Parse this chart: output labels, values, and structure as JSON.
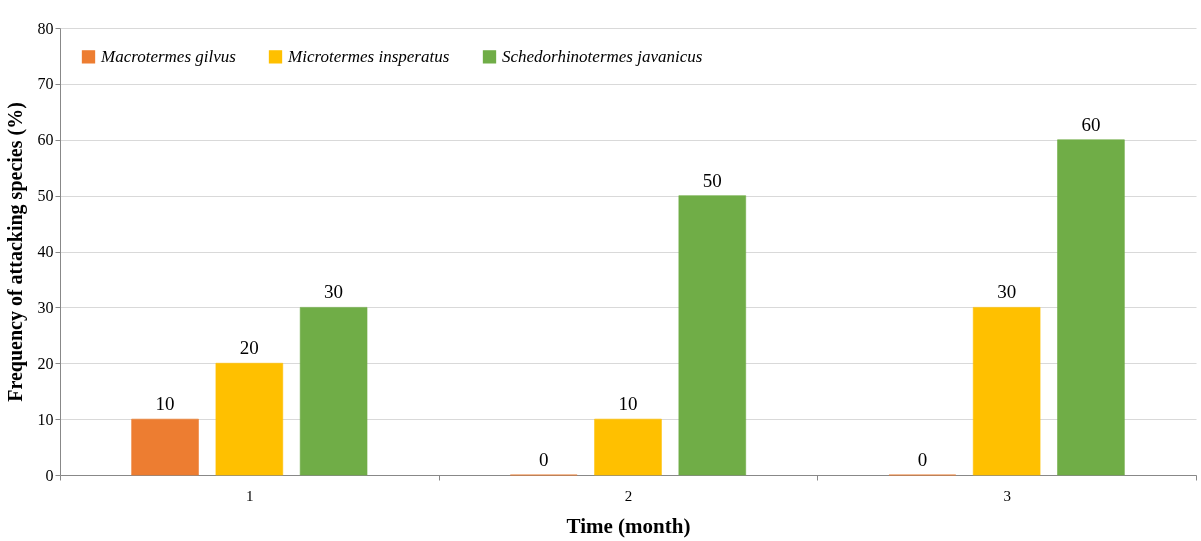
{
  "chart_data": {
    "type": "bar",
    "xlabel": "Time (month)",
    "ylabel": "Frequency of attacking species (%)",
    "categories": [
      "1",
      "2",
      "3"
    ],
    "series": [
      {
        "name": "Macrotermes gilvus",
        "color": "#ed7d31",
        "values": [
          10,
          0,
          0
        ]
      },
      {
        "name": "Microtermes insperatus",
        "color": "#ffc000",
        "values": [
          20,
          10,
          30
        ]
      },
      {
        "name": "Schedorhinotermes javanicus",
        "color": "#70ad47",
        "values": [
          30,
          50,
          60
        ]
      }
    ],
    "ylim": [
      0,
      80
    ],
    "yticks": [
      0,
      10,
      20,
      30,
      40,
      50,
      60,
      70,
      80
    ],
    "grid": "y",
    "legend": "top left",
    "data_labels": true
  }
}
